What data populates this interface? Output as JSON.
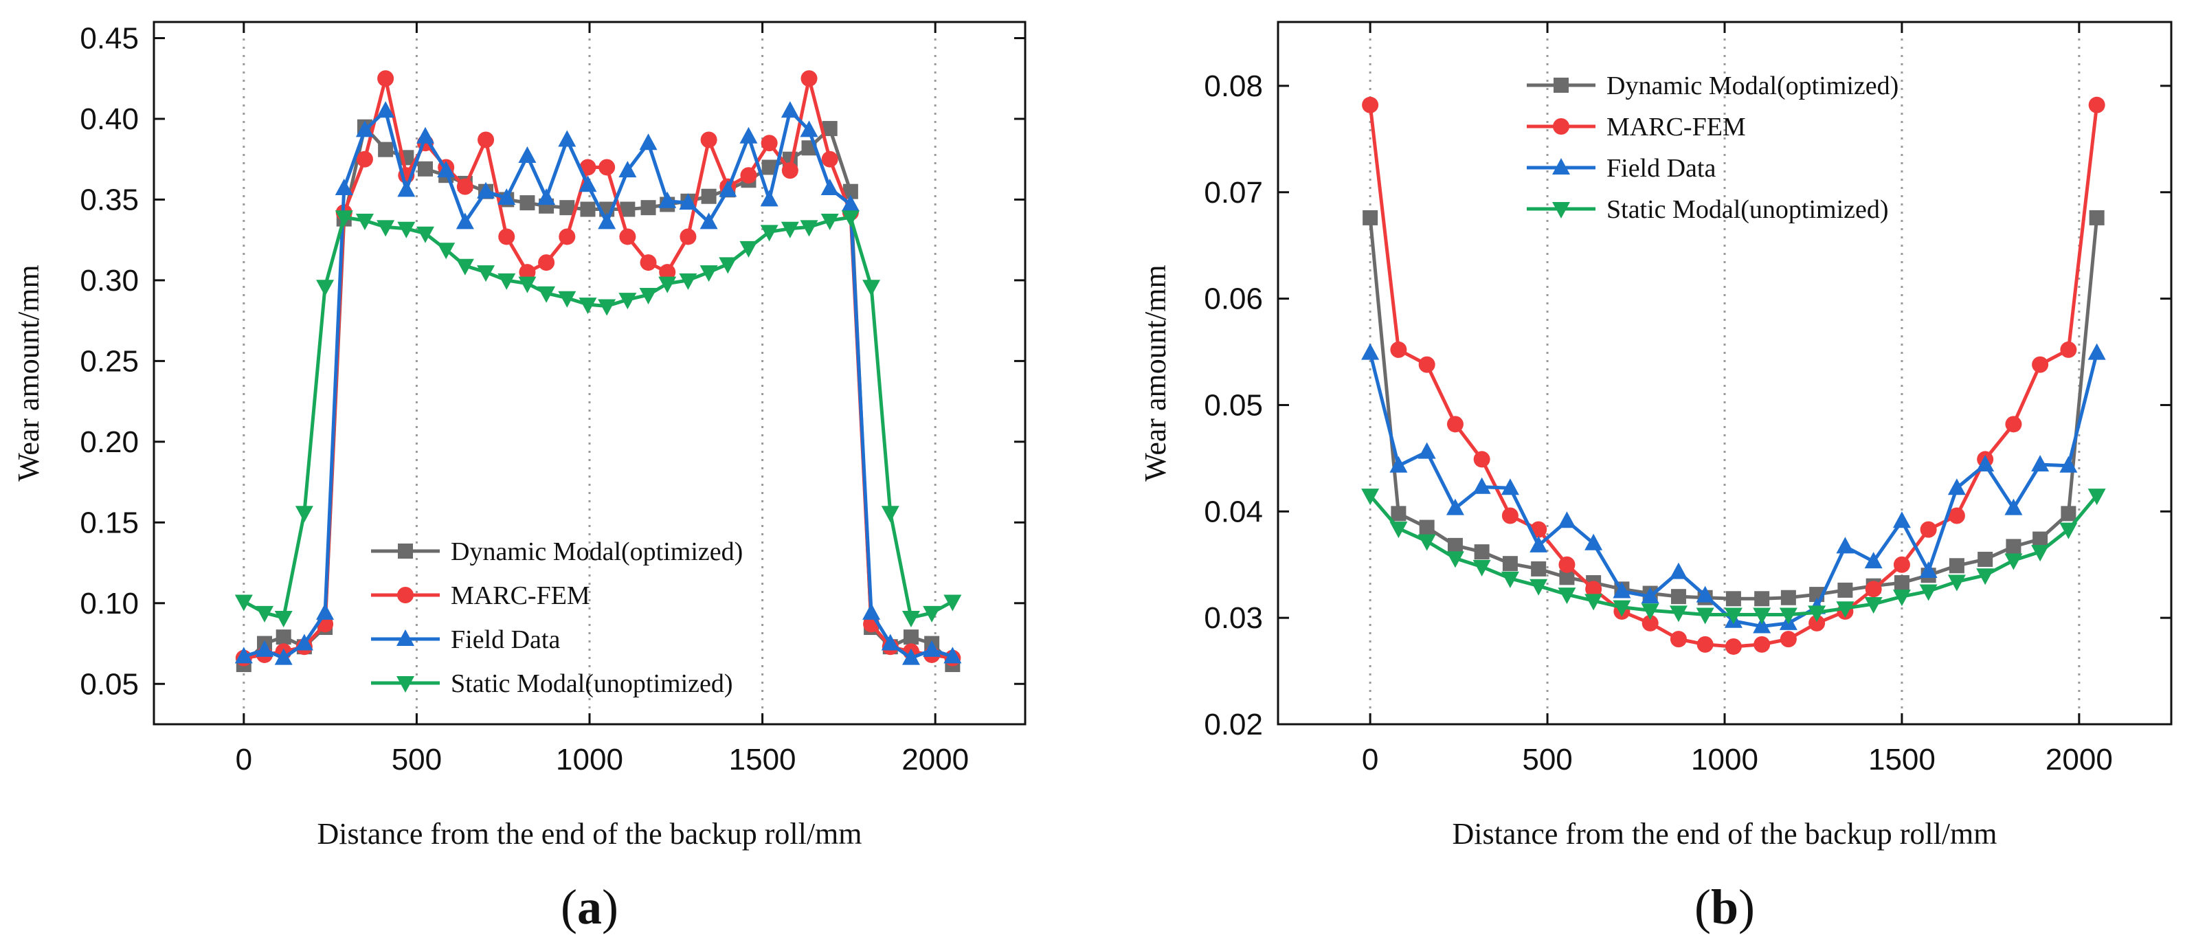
{
  "chart_data": [
    {
      "type": "line",
      "panel_label": {
        "open": "(",
        "letter": "a",
        "close": ")"
      },
      "xlabel": "Distance from the end of the backup roll/mm",
      "ylabel": "Wear amount/mm",
      "xlim": [
        -260,
        2260
      ],
      "ylim": [
        0.025,
        0.46
      ],
      "xticks": [
        0,
        500,
        1000,
        1500,
        2000
      ],
      "yticks": [
        0.05,
        0.1,
        0.15,
        0.2,
        0.25,
        0.3,
        0.35,
        0.4,
        0.45
      ],
      "ytick_labels": [
        "0.05",
        "0.10",
        "0.15",
        "0.20",
        "0.25",
        "0.30",
        "0.35",
        "0.40",
        "0.45"
      ],
      "vgrid": [
        0,
        500,
        1000,
        1500,
        2000
      ],
      "legend_position": "bottom-center",
      "series": [
        {
          "name": "Dynamic Modal(optimized)",
          "color": "#6b6b6b",
          "marker": "square",
          "x": [
            0,
            60,
            115,
            175,
            235,
            290,
            350,
            410,
            470,
            525,
            585,
            640,
            700,
            760,
            820,
            875,
            935,
            995,
            1050,
            1110,
            1170,
            1225,
            1285,
            1345,
            1400,
            1460,
            1520,
            1580,
            1635,
            1695,
            1755,
            1815,
            1870,
            1930,
            1990,
            2050
          ],
          "values": [
            0.062,
            0.075,
            0.079,
            0.073,
            0.085,
            0.338,
            0.395,
            0.381,
            0.376,
            0.369,
            0.365,
            0.36,
            0.355,
            0.35,
            0.348,
            0.346,
            0.345,
            0.344,
            0.344,
            0.344,
            0.345,
            0.347,
            0.349,
            0.352,
            0.356,
            0.362,
            0.37,
            0.375,
            0.382,
            0.394,
            0.355,
            0.085,
            0.073,
            0.079,
            0.075,
            0.062
          ]
        },
        {
          "name": "MARC-FEM",
          "color": "#ef3b3b",
          "marker": "circle",
          "x": [
            0,
            60,
            115,
            175,
            235,
            290,
            350,
            410,
            470,
            525,
            585,
            640,
            700,
            760,
            820,
            875,
            935,
            995,
            1050,
            1110,
            1170,
            1225,
            1285,
            1345,
            1400,
            1460,
            1520,
            1580,
            1635,
            1695,
            1755,
            1815,
            1870,
            1930,
            1990,
            2050
          ],
          "values": [
            0.066,
            0.068,
            0.07,
            0.073,
            0.087,
            0.342,
            0.375,
            0.425,
            0.365,
            0.385,
            0.37,
            0.358,
            0.387,
            0.327,
            0.305,
            0.311,
            0.327,
            0.37,
            0.37,
            0.327,
            0.311,
            0.305,
            0.327,
            0.387,
            0.358,
            0.365,
            0.385,
            0.368,
            0.425,
            0.375,
            0.342,
            0.087,
            0.073,
            0.07,
            0.068,
            0.066
          ]
        },
        {
          "name": "Field Data",
          "color": "#1f6fd1",
          "marker": "triangle-up",
          "x": [
            0,
            60,
            115,
            175,
            235,
            290,
            350,
            410,
            470,
            525,
            585,
            640,
            700,
            760,
            820,
            875,
            935,
            995,
            1050,
            1110,
            1170,
            1225,
            1285,
            1345,
            1400,
            1460,
            1520,
            1580,
            1635,
            1695,
            1755,
            1815,
            1870,
            1930,
            1990,
            2050
          ],
          "values": [
            0.067,
            0.071,
            0.066,
            0.075,
            0.094,
            0.357,
            0.393,
            0.405,
            0.356,
            0.389,
            0.368,
            0.336,
            0.355,
            0.351,
            0.377,
            0.351,
            0.387,
            0.359,
            0.336,
            0.368,
            0.385,
            0.349,
            0.348,
            0.336,
            0.356,
            0.389,
            0.35,
            0.405,
            0.393,
            0.357,
            0.347,
            0.094,
            0.075,
            0.066,
            0.071,
            0.067
          ]
        },
        {
          "name": "Static Modal(unoptimized)",
          "color": "#18a85a",
          "marker": "triangle-down",
          "x": [
            0,
            60,
            115,
            175,
            235,
            290,
            350,
            410,
            470,
            525,
            585,
            640,
            700,
            760,
            820,
            875,
            935,
            995,
            1050,
            1110,
            1170,
            1225,
            1285,
            1345,
            1400,
            1460,
            1520,
            1580,
            1635,
            1695,
            1755,
            1815,
            1870,
            1930,
            1990,
            2050
          ],
          "values": [
            0.101,
            0.094,
            0.091,
            0.156,
            0.296,
            0.339,
            0.337,
            0.333,
            0.332,
            0.329,
            0.319,
            0.309,
            0.305,
            0.3,
            0.298,
            0.292,
            0.289,
            0.285,
            0.284,
            0.288,
            0.291,
            0.298,
            0.3,
            0.305,
            0.31,
            0.32,
            0.33,
            0.332,
            0.333,
            0.337,
            0.339,
            0.296,
            0.156,
            0.091,
            0.094,
            0.101
          ]
        }
      ]
    },
    {
      "type": "line",
      "panel_label": {
        "open": "(",
        "letter": "b",
        "close": ")"
      },
      "xlabel": "Distance from the end of the backup roll/mm",
      "ylabel": "Wear amount/mm",
      "xlim": [
        -260,
        2260
      ],
      "ylim": [
        0.02,
        0.086
      ],
      "xticks": [
        0,
        500,
        1000,
        1500,
        2000
      ],
      "yticks": [
        0.02,
        0.03,
        0.04,
        0.05,
        0.06,
        0.07,
        0.08
      ],
      "ytick_labels": [
        "0.02",
        "0.03",
        "0.04",
        "0.05",
        "0.06",
        "0.07",
        "0.08"
      ],
      "vgrid": [
        0,
        500,
        1000,
        1500,
        2000
      ],
      "legend_position": "top-center",
      "series": [
        {
          "name": "Dynamic Modal(optimized)",
          "color": "#6b6b6b",
          "marker": "square",
          "x": [
            0,
            80,
            160,
            240,
            315,
            395,
            475,
            555,
            630,
            710,
            790,
            870,
            945,
            1025,
            1105,
            1180,
            1260,
            1340,
            1420,
            1500,
            1575,
            1655,
            1735,
            1815,
            1890,
            1970,
            2050
          ],
          "values": [
            0.0676,
            0.0398,
            0.0385,
            0.0368,
            0.0362,
            0.0351,
            0.0346,
            0.0338,
            0.0333,
            0.0327,
            0.0323,
            0.032,
            0.0319,
            0.0318,
            0.0318,
            0.0319,
            0.0322,
            0.0326,
            0.033,
            0.0333,
            0.034,
            0.0349,
            0.0355,
            0.0367,
            0.0374,
            0.0398,
            0.0676
          ]
        },
        {
          "name": "MARC-FEM",
          "color": "#ef3b3b",
          "marker": "circle",
          "x": [
            0,
            80,
            160,
            240,
            315,
            395,
            475,
            555,
            630,
            710,
            790,
            870,
            945,
            1025,
            1105,
            1180,
            1260,
            1340,
            1420,
            1500,
            1575,
            1655,
            1735,
            1815,
            1890,
            1970,
            2050
          ],
          "values": [
            0.0782,
            0.0552,
            0.0538,
            0.0482,
            0.0449,
            0.0396,
            0.0383,
            0.035,
            0.0327,
            0.0306,
            0.0295,
            0.028,
            0.0275,
            0.0273,
            0.0275,
            0.028,
            0.0295,
            0.0306,
            0.0327,
            0.035,
            0.0383,
            0.0396,
            0.0449,
            0.0482,
            0.0538,
            0.0552,
            0.0782
          ]
        },
        {
          "name": "Field Data",
          "color": "#1f6fd1",
          "marker": "triangle-up",
          "x": [
            0,
            80,
            160,
            240,
            315,
            395,
            475,
            555,
            630,
            710,
            790,
            870,
            945,
            1025,
            1105,
            1180,
            1260,
            1340,
            1420,
            1500,
            1575,
            1655,
            1735,
            1815,
            1890,
            1970,
            2050
          ],
          "values": [
            0.0549,
            0.0443,
            0.0456,
            0.0403,
            0.0423,
            0.0422,
            0.0368,
            0.0391,
            0.037,
            0.0325,
            0.032,
            0.0343,
            0.0321,
            0.0297,
            0.0292,
            0.0295,
            0.031,
            0.0367,
            0.0353,
            0.0391,
            0.0344,
            0.0422,
            0.0444,
            0.0403,
            0.0444,
            0.0443,
            0.0549
          ]
        },
        {
          "name": "Static Modal(unoptimized)",
          "color": "#18a85a",
          "marker": "triangle-down",
          "x": [
            0,
            80,
            160,
            240,
            315,
            395,
            475,
            555,
            630,
            710,
            790,
            870,
            945,
            1025,
            1105,
            1180,
            1260,
            1340,
            1420,
            1500,
            1575,
            1655,
            1735,
            1815,
            1890,
            1970,
            2050
          ],
          "values": [
            0.0415,
            0.0384,
            0.0372,
            0.0356,
            0.0348,
            0.0337,
            0.033,
            0.0322,
            0.0316,
            0.031,
            0.0307,
            0.0305,
            0.0303,
            0.0303,
            0.0303,
            0.0303,
            0.0305,
            0.0309,
            0.0313,
            0.032,
            0.0325,
            0.0334,
            0.034,
            0.0354,
            0.0362,
            0.0383,
            0.0415
          ]
        }
      ]
    }
  ]
}
